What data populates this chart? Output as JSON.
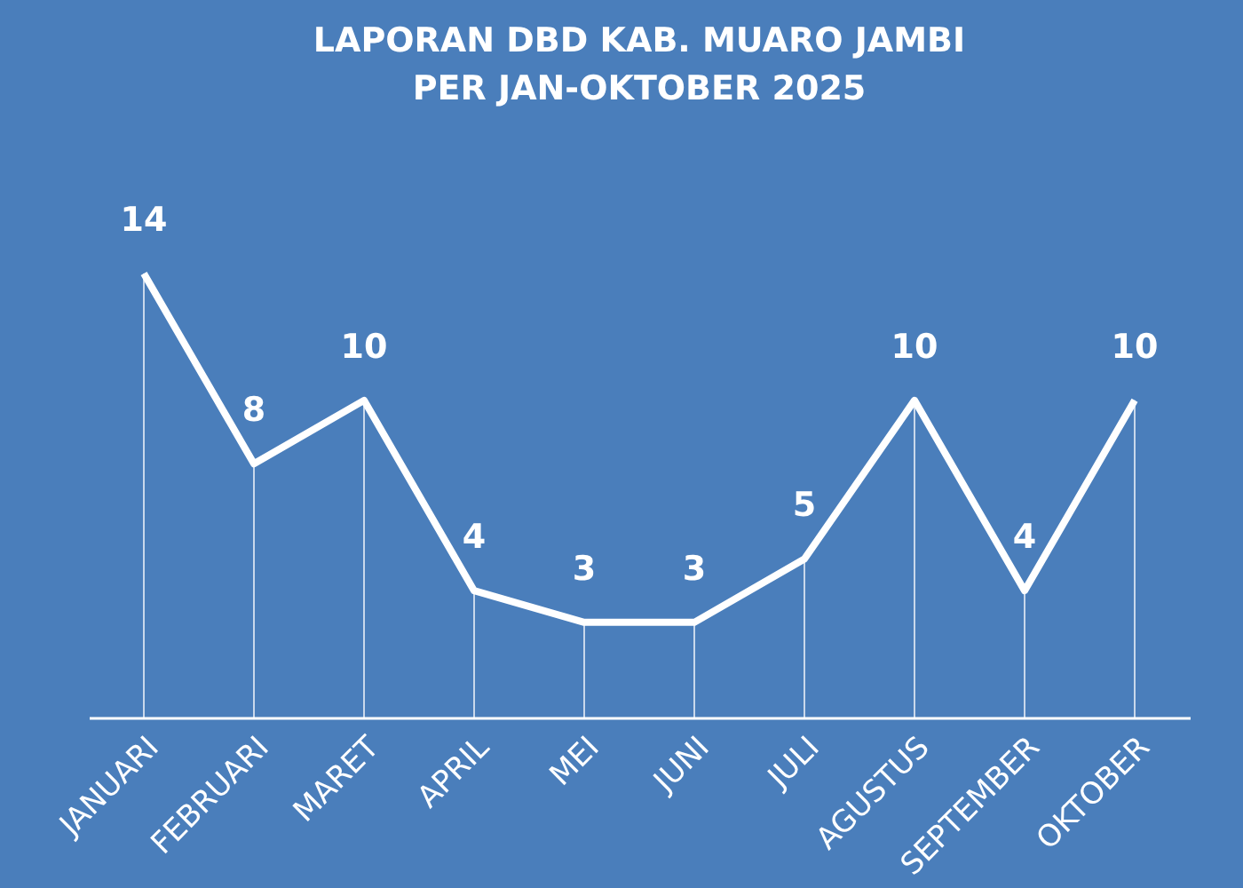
{
  "chart_data": {
    "type": "line",
    "title": "LAPORAN DBD KAB. MUARO JAMBI",
    "subtitle": "PER JAN-OKTOBER 2025",
    "categories": [
      "JANUARI",
      "FEBRUARI",
      "MARET",
      "APRIL",
      "MEI",
      "JUNI",
      "JULI",
      "AGUSTUS",
      "SEPTEMBER",
      "OKTOBER"
    ],
    "series": [
      {
        "color": "#ffffff",
        "values": [
          14,
          8,
          10,
          4,
          3,
          3,
          5,
          10,
          4,
          10
        ]
      }
    ],
    "data_labels": true,
    "grid": "x",
    "marker": "none",
    "line_style": "solid"
  }
}
